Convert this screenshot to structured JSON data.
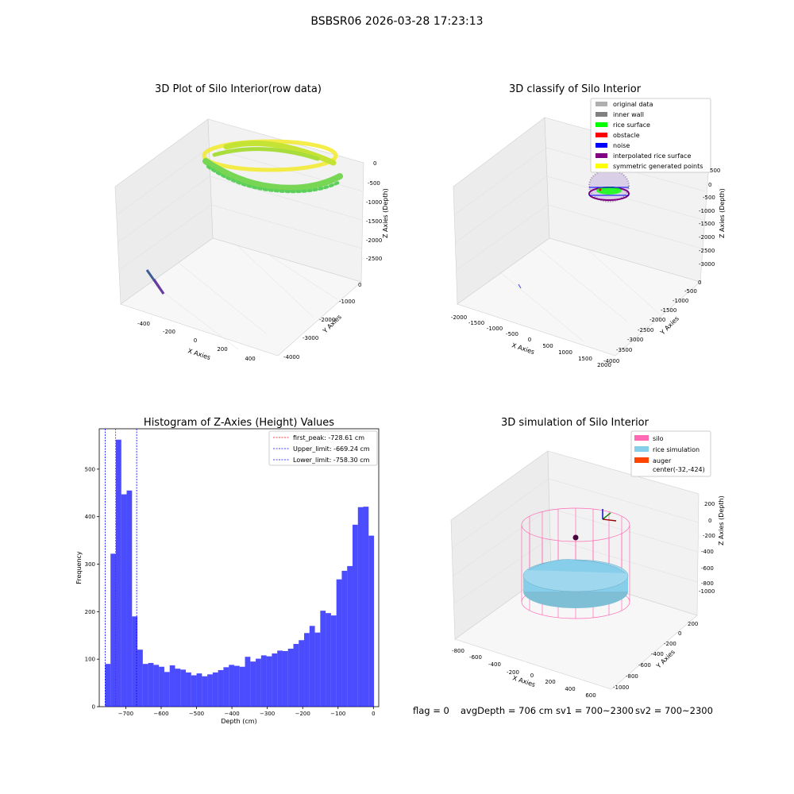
{
  "suptitle": "BSBSR06 2026-03-28 17:23:13",
  "panels": {
    "raw": {
      "title": "3D Plot of Silo Interior(row data)",
      "xlabel": "X Axies",
      "ylabel": "Y Axies",
      "zlabel": "Z Axies (Depth)",
      "xticks": [
        "-400",
        "-200",
        "0",
        "200",
        "400"
      ],
      "yticks": [
        "0",
        "-1000",
        "-2000",
        "-3000",
        "-4000"
      ],
      "zticks": [
        "0",
        "-500",
        "-1000",
        "-1500",
        "-2000",
        "-2500"
      ]
    },
    "classify": {
      "title": "3D classify of Silo Interior",
      "xlabel": "X Axies",
      "ylabel": "Y Axies",
      "zlabel": "Z Axies (Depth)",
      "xticks": [
        "-2000",
        "-1500",
        "-1000",
        "-500",
        "0",
        "500",
        "1000",
        "1500",
        "2000"
      ],
      "yticks": [
        "0",
        "-500",
        "-1000",
        "-1500",
        "-2000",
        "-2500",
        "-3000",
        "-3500",
        "-4000"
      ],
      "zticks": [
        "500",
        "0",
        "-500",
        "-1000",
        "-1500",
        "-2000",
        "-2500",
        "-3000"
      ],
      "legend": [
        {
          "label": "original data",
          "color": "#b0b0b0"
        },
        {
          "label": "inner wall",
          "color": "#808080"
        },
        {
          "label": "rice surface",
          "color": "#00ff00"
        },
        {
          "label": "obstacle",
          "color": "#ff0000"
        },
        {
          "label": "noise",
          "color": "#0000ff"
        },
        {
          "label": "interpolated rice surface",
          "color": "#800080"
        },
        {
          "label": "symmetric generated points",
          "color": "#ffff00"
        }
      ]
    },
    "simulation": {
      "title": "3D simulation of Silo Interior",
      "xlabel": "X Axies",
      "ylabel": "Y Axies",
      "zlabel": "Z Axies (Depth)",
      "xticks": [
        "-800",
        "-600",
        "-400",
        "-200",
        "0",
        "200",
        "400",
        "600"
      ],
      "yticks": [
        "200",
        "0",
        "-200",
        "-400",
        "-600",
        "-800",
        "-1000"
      ],
      "zticks": [
        "200",
        "0",
        "-200",
        "-400",
        "-600",
        "-800",
        "-1000"
      ],
      "legend": [
        {
          "label": "silo",
          "color": "#ff69b4"
        },
        {
          "label": "rice simulation",
          "color": "#87ceeb"
        },
        {
          "label": "auger",
          "color": "#ff4500"
        },
        {
          "label": "center(-32,-424)",
          "color": ""
        }
      ]
    }
  },
  "chart_data": {
    "type": "bar",
    "title": "Histogram of Z-Axies (Height) Values",
    "xlabel": "Depth (cm)",
    "ylabel": "Frequency",
    "xlim": [
      -775,
      15
    ],
    "ylim": [
      0,
      585
    ],
    "xticks": [
      -700,
      -600,
      -500,
      -400,
      -300,
      -200,
      -100,
      0
    ],
    "yticks": [
      0,
      100,
      200,
      300,
      400,
      500
    ],
    "bar_color": "#0000ff",
    "bin_width": 15.2,
    "bins": [
      {
        "x": -758.3,
        "v": 90
      },
      {
        "x": -743.1,
        "v": 322
      },
      {
        "x": -727.9,
        "v": 562
      },
      {
        "x": -712.7,
        "v": 447
      },
      {
        "x": -697.5,
        "v": 455
      },
      {
        "x": -682.3,
        "v": 190
      },
      {
        "x": -667.1,
        "v": 120
      },
      {
        "x": -651.9,
        "v": 90
      },
      {
        "x": -636.7,
        "v": 92
      },
      {
        "x": -621.5,
        "v": 88
      },
      {
        "x": -606.3,
        "v": 84
      },
      {
        "x": -591.1,
        "v": 73
      },
      {
        "x": -575.9,
        "v": 87
      },
      {
        "x": -560.7,
        "v": 80
      },
      {
        "x": -545.5,
        "v": 78
      },
      {
        "x": -530.3,
        "v": 72
      },
      {
        "x": -515.1,
        "v": 66
      },
      {
        "x": -499.9,
        "v": 70
      },
      {
        "x": -484.7,
        "v": 64
      },
      {
        "x": -469.5,
        "v": 68
      },
      {
        "x": -454.3,
        "v": 72
      },
      {
        "x": -439.1,
        "v": 77
      },
      {
        "x": -423.9,
        "v": 83
      },
      {
        "x": -408.7,
        "v": 88
      },
      {
        "x": -393.5,
        "v": 86
      },
      {
        "x": -378.3,
        "v": 84
      },
      {
        "x": -363.1,
        "v": 105
      },
      {
        "x": -347.9,
        "v": 95
      },
      {
        "x": -332.7,
        "v": 101
      },
      {
        "x": -317.5,
        "v": 108
      },
      {
        "x": -302.3,
        "v": 106
      },
      {
        "x": -287.1,
        "v": 112
      },
      {
        "x": -271.9,
        "v": 118
      },
      {
        "x": -256.7,
        "v": 117
      },
      {
        "x": -241.5,
        "v": 122
      },
      {
        "x": -226.3,
        "v": 132
      },
      {
        "x": -211.1,
        "v": 140
      },
      {
        "x": -195.9,
        "v": 155
      },
      {
        "x": -180.7,
        "v": 170
      },
      {
        "x": -165.5,
        "v": 156
      },
      {
        "x": -150.3,
        "v": 202
      },
      {
        "x": -135.1,
        "v": 197
      },
      {
        "x": -119.9,
        "v": 192
      },
      {
        "x": -104.7,
        "v": 268
      },
      {
        "x": -89.5,
        "v": 286
      },
      {
        "x": -74.3,
        "v": 296
      },
      {
        "x": -59.1,
        "v": 383
      },
      {
        "x": -43.9,
        "v": 420
      },
      {
        "x": -28.7,
        "v": 421
      },
      {
        "x": -13.5,
        "v": 360
      }
    ],
    "vlines": [
      {
        "label": "first_peak: -728.61 cm",
        "x": -728.61,
        "color": "#ff0000"
      },
      {
        "label": "Upper_limit: -669.24 cm",
        "x": -669.24,
        "color": "#0000ff"
      },
      {
        "label": "Lower_limit: -758.30 cm",
        "x": -758.3,
        "color": "#0000ff"
      }
    ]
  },
  "status": {
    "flag": "flag = 0",
    "avg_depth": "avgDepth = 706 cm",
    "sv1": "sv1 = 700~2300",
    "sv2": "sv2 = 700~2300"
  }
}
